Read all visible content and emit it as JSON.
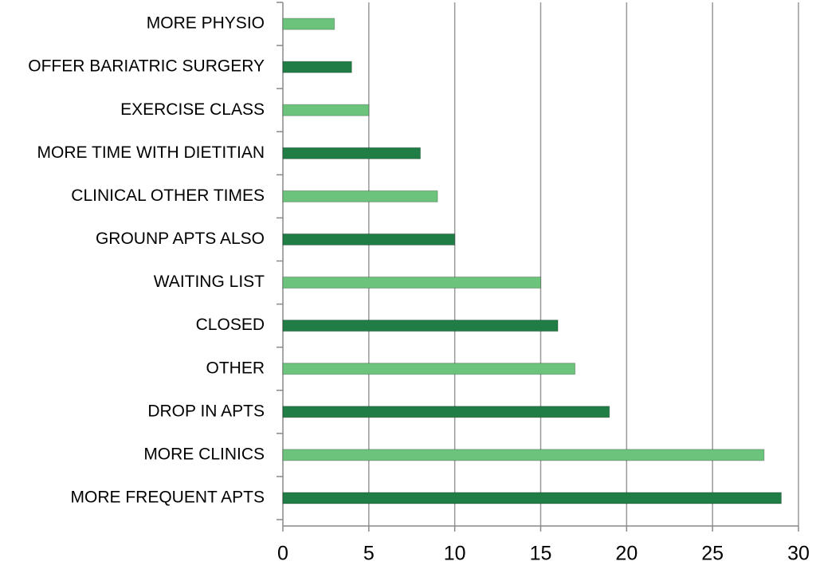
{
  "chart_data": {
    "type": "bar",
    "orientation": "horizontal",
    "categories": [
      "MORE PHYSIO",
      "OFFER BARIATRIC SURGERY",
      "EXERCISE CLASS",
      "MORE TIME WITH DIETITIAN",
      "CLINICAL OTHER TIMES",
      "GROUNP APTS ALSO",
      "WAITING LIST",
      "CLOSED",
      "OTHER",
      "DROP IN APTS",
      "MORE CLINICS",
      "MORE FREQUENT APTS"
    ],
    "values": [
      3,
      4,
      5,
      8,
      9,
      10,
      15,
      16,
      17,
      19,
      28,
      29
    ],
    "colors": [
      "#6cc47c",
      "#1f7d45"
    ],
    "xlim": [
      0,
      30
    ],
    "xticks": [
      0,
      5,
      10,
      15,
      20,
      25,
      30
    ],
    "grid": true
  }
}
